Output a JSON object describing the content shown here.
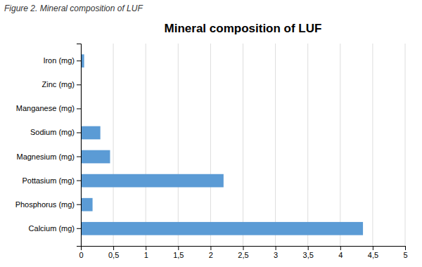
{
  "chart_data": {
    "type": "bar",
    "orientation": "horizontal",
    "title": "Mineral composition of LUF",
    "subtitle": "Figure 2. Mineral composition of LUF",
    "categories": [
      "Iron (mg)",
      "Zinc (mg)",
      "Manganese (mg)",
      "Sodium (mg)",
      "Magnesium (mg)",
      "Pottasium (mg)",
      "Phosphorus (mg)",
      "Calcium (mg)"
    ],
    "values": [
      0.05,
      0.0,
      0.0,
      0.3,
      0.45,
      2.2,
      0.18,
      4.35
    ],
    "color": "#5B9BD5",
    "xlim": [
      0,
      5
    ],
    "xticks": [
      0,
      {
        "value": 0.5,
        "label": "0,5"
      },
      1,
      {
        "value": 1.5,
        "label": "1,5"
      },
      2,
      {
        "value": 2.5,
        "label": "2,5"
      },
      3,
      {
        "value": 3.5,
        "label": "3,5"
      },
      4,
      {
        "value": 4.5,
        "label": "4,5"
      },
      5
    ],
    "grid": true
  }
}
